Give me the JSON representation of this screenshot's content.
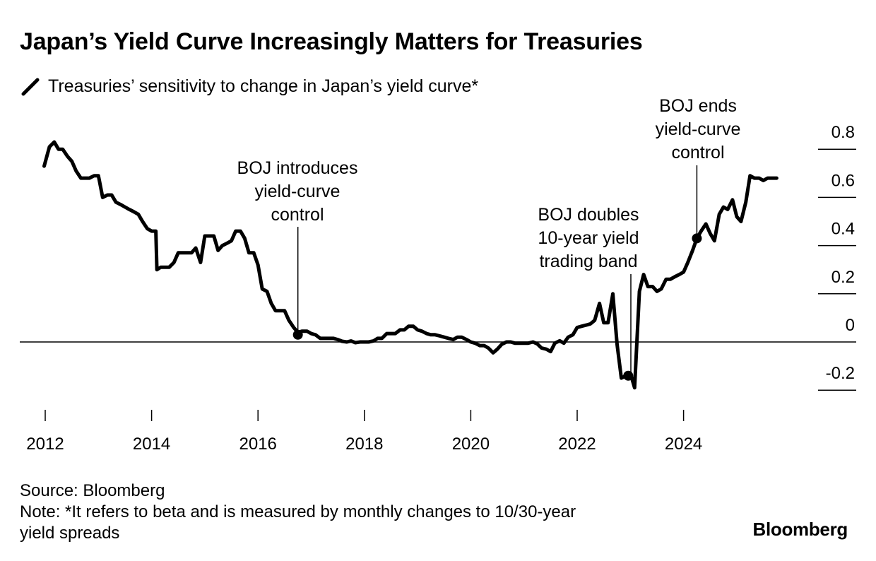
{
  "title": "Japan’s Yield Curve Increasingly Matters for Treasuries",
  "legend": {
    "label": "Treasuries’ sensitivity to change in Japan’s yield curve*",
    "color": "#000000"
  },
  "footer": {
    "source": "Source: Bloomberg",
    "note_line1": "Note: *It refers to beta and is measured by monthly changes to 10/30-year",
    "note_line2": "yield spreads"
  },
  "brand": "Bloomberg",
  "chart_data": {
    "type": "line",
    "title": "Japan’s Yield Curve Increasingly Matters for Treasuries",
    "xlabel": "",
    "ylabel": "",
    "xlim": [
      2011.95,
      2025.9
    ],
    "ylim": [
      -0.3,
      0.85
    ],
    "grid": false,
    "legend_position": "top-left",
    "x_ticks": [
      2012,
      2014,
      2016,
      2018,
      2020,
      2022,
      2024
    ],
    "x_tick_labels": [
      "2012",
      "2014",
      "2016",
      "2018",
      "2020",
      "2022",
      "2024"
    ],
    "y_ticks": [
      0.8,
      0.6,
      0.4,
      0.2,
      0,
      -0.2
    ],
    "y_tick_labels": [
      "0.8",
      "0.6",
      "0.4",
      "0.2",
      "0",
      "-0.2"
    ],
    "series": [
      {
        "name": "Treasuries’ sensitivity to change in Japan’s yield curve*",
        "color": "#000000",
        "points": [
          [
            2011.98,
            0.73
          ],
          [
            2012.08,
            0.81
          ],
          [
            2012.17,
            0.83
          ],
          [
            2012.25,
            0.8
          ],
          [
            2012.33,
            0.8
          ],
          [
            2012.42,
            0.77
          ],
          [
            2012.5,
            0.75
          ],
          [
            2012.58,
            0.71
          ],
          [
            2012.67,
            0.68
          ],
          [
            2012.75,
            0.68
          ],
          [
            2012.83,
            0.68
          ],
          [
            2012.92,
            0.69
          ],
          [
            2013.0,
            0.69
          ],
          [
            2013.08,
            0.6
          ],
          [
            2013.17,
            0.61
          ],
          [
            2013.25,
            0.61
          ],
          [
            2013.33,
            0.58
          ],
          [
            2013.42,
            0.57
          ],
          [
            2013.5,
            0.56
          ],
          [
            2013.58,
            0.55
          ],
          [
            2013.67,
            0.54
          ],
          [
            2013.75,
            0.53
          ],
          [
            2013.83,
            0.5
          ],
          [
            2013.92,
            0.47
          ],
          [
            2014.0,
            0.46
          ],
          [
            2014.08,
            0.46
          ],
          [
            2014.1,
            0.3
          ],
          [
            2014.17,
            0.31
          ],
          [
            2014.25,
            0.31
          ],
          [
            2014.33,
            0.31
          ],
          [
            2014.42,
            0.33
          ],
          [
            2014.5,
            0.37
          ],
          [
            2014.58,
            0.37
          ],
          [
            2014.67,
            0.37
          ],
          [
            2014.75,
            0.37
          ],
          [
            2014.83,
            0.39
          ],
          [
            2014.92,
            0.33
          ],
          [
            2015.0,
            0.44
          ],
          [
            2015.08,
            0.44
          ],
          [
            2015.17,
            0.44
          ],
          [
            2015.25,
            0.38
          ],
          [
            2015.33,
            0.4
          ],
          [
            2015.42,
            0.41
          ],
          [
            2015.5,
            0.42
          ],
          [
            2015.58,
            0.46
          ],
          [
            2015.67,
            0.46
          ],
          [
            2015.75,
            0.43
          ],
          [
            2015.83,
            0.37
          ],
          [
            2015.92,
            0.37
          ],
          [
            2016.0,
            0.32
          ],
          [
            2016.08,
            0.22
          ],
          [
            2016.17,
            0.21
          ],
          [
            2016.25,
            0.16
          ],
          [
            2016.33,
            0.13
          ],
          [
            2016.42,
            0.13
          ],
          [
            2016.5,
            0.13
          ],
          [
            2016.58,
            0.09
          ],
          [
            2016.67,
            0.06
          ],
          [
            2016.75,
            0.04
          ],
          [
            2016.83,
            0.045
          ],
          [
            2016.92,
            0.045
          ],
          [
            2017.0,
            0.035
          ],
          [
            2017.08,
            0.03
          ],
          [
            2017.17,
            0.015
          ],
          [
            2017.25,
            0.015
          ],
          [
            2017.33,
            0.015
          ],
          [
            2017.42,
            0.015
          ],
          [
            2017.5,
            0.01
          ],
          [
            2017.58,
            0.003
          ],
          [
            2017.67,
            0.0
          ],
          [
            2017.75,
            0.004
          ],
          [
            2017.83,
            -0.003
          ],
          [
            2017.92,
            0.0
          ],
          [
            2018.0,
            0.0
          ],
          [
            2018.08,
            0.0
          ],
          [
            2018.17,
            0.004
          ],
          [
            2018.25,
            0.015
          ],
          [
            2018.33,
            0.015
          ],
          [
            2018.42,
            0.035
          ],
          [
            2018.5,
            0.035
          ],
          [
            2018.58,
            0.035
          ],
          [
            2018.67,
            0.05
          ],
          [
            2018.75,
            0.05
          ],
          [
            2018.83,
            0.065
          ],
          [
            2018.92,
            0.065
          ],
          [
            2019.0,
            0.05
          ],
          [
            2019.08,
            0.045
          ],
          [
            2019.17,
            0.035
          ],
          [
            2019.25,
            0.03
          ],
          [
            2019.33,
            0.03
          ],
          [
            2019.42,
            0.025
          ],
          [
            2019.5,
            0.02
          ],
          [
            2019.58,
            0.015
          ],
          [
            2019.67,
            0.01
          ],
          [
            2019.75,
            0.02
          ],
          [
            2019.83,
            0.02
          ],
          [
            2019.92,
            0.01
          ],
          [
            2020.0,
            0.0
          ],
          [
            2020.08,
            -0.005
          ],
          [
            2020.17,
            -0.015
          ],
          [
            2020.25,
            -0.015
          ],
          [
            2020.33,
            -0.025
          ],
          [
            2020.42,
            -0.045
          ],
          [
            2020.5,
            -0.03
          ],
          [
            2020.58,
            -0.01
          ],
          [
            2020.67,
            0.0
          ],
          [
            2020.75,
            0.0
          ],
          [
            2020.83,
            -0.005
          ],
          [
            2020.92,
            -0.005
          ],
          [
            2021.0,
            -0.005
          ],
          [
            2021.08,
            -0.005
          ],
          [
            2021.17,
            0.0
          ],
          [
            2021.25,
            -0.008
          ],
          [
            2021.33,
            -0.025
          ],
          [
            2021.42,
            -0.03
          ],
          [
            2021.5,
            -0.04
          ],
          [
            2021.58,
            -0.005
          ],
          [
            2021.67,
            0.005
          ],
          [
            2021.75,
            -0.005
          ],
          [
            2021.83,
            0.02
          ],
          [
            2021.92,
            0.03
          ],
          [
            2022.0,
            0.06
          ],
          [
            2022.08,
            0.065
          ],
          [
            2022.17,
            0.07
          ],
          [
            2022.25,
            0.075
          ],
          [
            2022.33,
            0.09
          ],
          [
            2022.42,
            0.16
          ],
          [
            2022.5,
            0.08
          ],
          [
            2022.58,
            0.08
          ],
          [
            2022.67,
            0.2
          ],
          [
            2022.75,
            -0.01
          ],
          [
            2022.83,
            -0.15
          ],
          [
            2022.92,
            -0.14
          ],
          [
            2023.0,
            -0.13
          ],
          [
            2023.08,
            -0.19
          ],
          [
            2023.17,
            0.21
          ],
          [
            2023.25,
            0.28
          ],
          [
            2023.33,
            0.23
          ],
          [
            2023.42,
            0.23
          ],
          [
            2023.5,
            0.21
          ],
          [
            2023.58,
            0.22
          ],
          [
            2023.67,
            0.26
          ],
          [
            2023.75,
            0.26
          ],
          [
            2023.83,
            0.27
          ],
          [
            2023.92,
            0.28
          ],
          [
            2024.0,
            0.29
          ],
          [
            2024.08,
            0.33
          ],
          [
            2024.17,
            0.38
          ],
          [
            2024.25,
            0.43
          ],
          [
            2024.33,
            0.46
          ],
          [
            2024.42,
            0.49
          ],
          [
            2024.5,
            0.45
          ],
          [
            2024.58,
            0.42
          ],
          [
            2024.67,
            0.53
          ],
          [
            2024.75,
            0.56
          ],
          [
            2024.83,
            0.55
          ],
          [
            2024.92,
            0.59
          ],
          [
            2025.0,
            0.52
          ],
          [
            2025.08,
            0.5
          ],
          [
            2025.17,
            0.58
          ],
          [
            2025.25,
            0.69
          ],
          [
            2025.33,
            0.68
          ],
          [
            2025.42,
            0.68
          ],
          [
            2025.5,
            0.67
          ],
          [
            2025.58,
            0.68
          ],
          [
            2025.67,
            0.68
          ],
          [
            2025.75,
            0.68
          ]
        ]
      }
    ],
    "annotations": [
      {
        "lines": [
          "BOJ introduces",
          "yield-curve",
          "control"
        ],
        "x": 2016.75,
        "y": 0.03
      },
      {
        "lines": [
          "BOJ doubles",
          "10-year yield",
          "trading band"
        ],
        "x": 2022.96,
        "y": -0.14
      },
      {
        "lines": [
          "BOJ ends",
          "yield-curve",
          "control"
        ],
        "x": 2024.25,
        "y": 0.43
      }
    ]
  }
}
